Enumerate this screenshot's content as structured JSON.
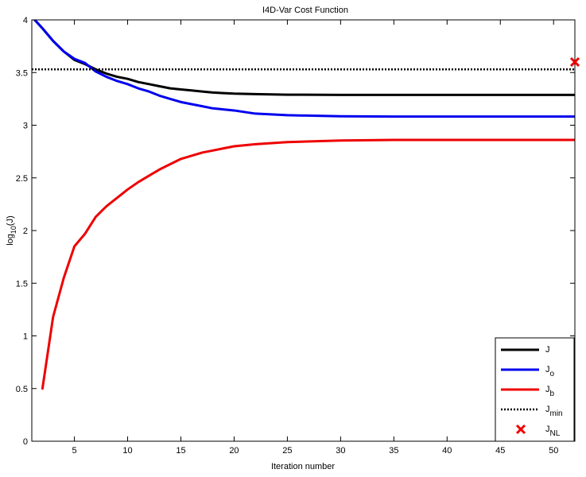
{
  "chart_data": {
    "type": "line",
    "title": "I4D-Var Cost Function",
    "xlabel": "Iteration number",
    "ylabel": {
      "base": "log",
      "sub": "10",
      "arg": "(J)"
    },
    "xlim": [
      1,
      52
    ],
    "ylim": [
      0,
      4
    ],
    "xticks": [
      5,
      10,
      15,
      20,
      25,
      30,
      35,
      40,
      45,
      50
    ],
    "yticks": [
      0,
      0.5,
      1,
      1.5,
      2,
      2.5,
      3,
      3.5,
      4
    ],
    "ytick_labels": [
      "0",
      "0.5",
      "1",
      "1.5",
      "2",
      "2.5",
      "3",
      "3.5",
      "4"
    ],
    "grid": false,
    "legend_position": "bottom-right",
    "series": [
      {
        "name": "J",
        "sub": "",
        "color": "#000000",
        "style": "solid",
        "x": [
          1,
          2,
          3,
          4,
          5,
          6,
          7,
          8,
          9,
          10,
          11,
          12,
          13,
          14,
          15,
          16,
          17,
          18,
          19,
          20,
          22,
          25,
          30,
          35,
          40,
          45,
          50,
          52
        ],
        "y": [
          4.03,
          3.92,
          3.8,
          3.7,
          3.62,
          3.58,
          3.53,
          3.49,
          3.46,
          3.44,
          3.41,
          3.39,
          3.37,
          3.35,
          3.34,
          3.33,
          3.32,
          3.31,
          3.305,
          3.3,
          3.295,
          3.29,
          3.288,
          3.288,
          3.288,
          3.288,
          3.288,
          3.288
        ]
      },
      {
        "name": "J",
        "sub": "o",
        "color": "#0000ee",
        "style": "solid",
        "x": [
          1,
          2,
          3,
          4,
          5,
          6,
          7,
          8,
          9,
          10,
          11,
          12,
          13,
          14,
          15,
          16,
          17,
          18,
          19,
          20,
          22,
          25,
          30,
          35,
          40,
          45,
          50,
          52
        ],
        "y": [
          4.03,
          3.92,
          3.8,
          3.7,
          3.63,
          3.59,
          3.51,
          3.46,
          3.42,
          3.39,
          3.35,
          3.32,
          3.28,
          3.25,
          3.22,
          3.2,
          3.18,
          3.16,
          3.15,
          3.14,
          3.11,
          3.095,
          3.085,
          3.082,
          3.082,
          3.082,
          3.082,
          3.082
        ]
      },
      {
        "name": "J",
        "sub": "b",
        "color": "#ee0000",
        "style": "solid",
        "x": [
          2,
          3,
          4,
          5,
          6,
          7,
          8,
          9,
          10,
          11,
          12,
          13,
          14,
          15,
          16,
          17,
          18,
          19,
          20,
          22,
          25,
          30,
          35,
          40,
          45,
          50,
          52
        ],
        "y": [
          0.5,
          1.18,
          1.55,
          1.85,
          1.97,
          2.13,
          2.23,
          2.31,
          2.39,
          2.46,
          2.52,
          2.58,
          2.63,
          2.68,
          2.71,
          2.74,
          2.76,
          2.78,
          2.8,
          2.82,
          2.84,
          2.855,
          2.86,
          2.86,
          2.86,
          2.86,
          2.86
        ]
      },
      {
        "name": "J",
        "sub": "min",
        "color": "#000000",
        "style": "dotted",
        "x": [
          1,
          52
        ],
        "y": [
          3.53,
          3.53
        ]
      },
      {
        "name": "J",
        "sub": "NL",
        "color": "#ee0000",
        "style": "marker-x",
        "x": [
          52
        ],
        "y": [
          3.6
        ]
      }
    ]
  }
}
